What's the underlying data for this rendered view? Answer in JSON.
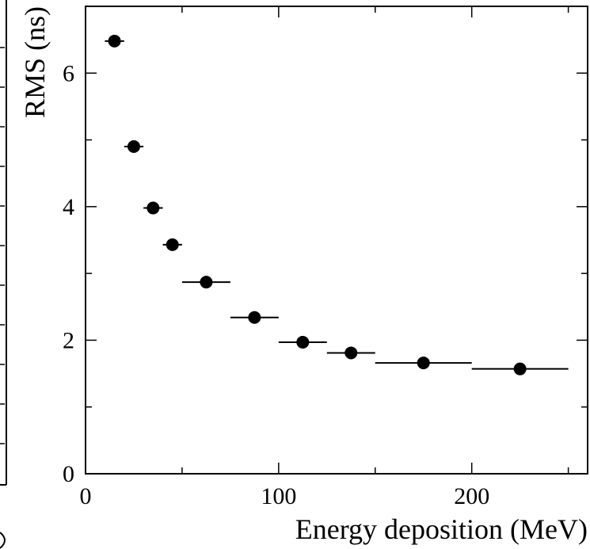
{
  "chart_data": {
    "type": "scatter",
    "title": "",
    "xlabel": "Energy deposition (MeV)",
    "ylabel": "RMS (ns)",
    "xlim": [
      0,
      260
    ],
    "ylim": [
      0,
      7.0
    ],
    "x_ticks": [
      0,
      100,
      200
    ],
    "y_ticks": [
      0,
      2,
      4,
      6
    ],
    "grid": false,
    "marker": "filled-circle",
    "color": "#000000",
    "points": [
      {
        "x": 15,
        "y": 6.48,
        "xerr": 5
      },
      {
        "x": 25,
        "y": 4.9,
        "xerr": 5
      },
      {
        "x": 35,
        "y": 3.98,
        "xerr": 5
      },
      {
        "x": 45,
        "y": 3.43,
        "xerr": 5
      },
      {
        "x": 62.5,
        "y": 2.87,
        "xerr": 12.5
      },
      {
        "x": 87.5,
        "y": 2.34,
        "xerr": 12.5
      },
      {
        "x": 112.5,
        "y": 1.97,
        "xerr": 12.5
      },
      {
        "x": 137.5,
        "y": 1.81,
        "xerr": 12.5
      },
      {
        "x": 175,
        "y": 1.66,
        "xerr": 25
      },
      {
        "x": 225,
        "y": 1.57,
        "xerr": 25
      }
    ]
  }
}
